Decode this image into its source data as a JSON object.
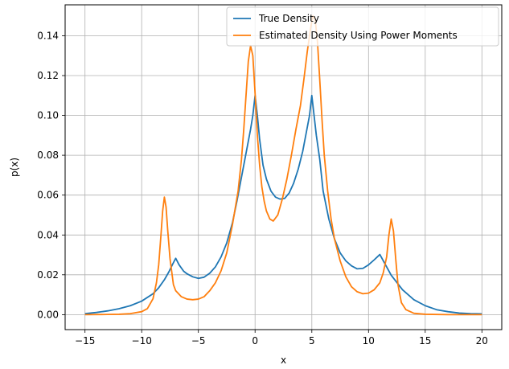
{
  "chart_data": {
    "type": "line",
    "title": "",
    "xlabel": "x",
    "ylabel": "p(x)",
    "xlim": [
      -16.75,
      21.75
    ],
    "ylim": [
      -0.0075,
      0.1555
    ],
    "grid": true,
    "legend_position": "top-right",
    "xticks": [
      -15,
      -10,
      -5,
      0,
      5,
      10,
      15,
      20
    ],
    "xtick_labels": [
      "−15",
      "−10",
      "−5",
      "0",
      "5",
      "10",
      "15",
      "20"
    ],
    "yticks": [
      0.0,
      0.02,
      0.04,
      0.06,
      0.08,
      0.1,
      0.12,
      0.14
    ],
    "ytick_labels": [
      "0.00",
      "0.02",
      "0.04",
      "0.06",
      "0.08",
      "0.10",
      "0.12",
      "0.14"
    ],
    "series": [
      {
        "name": "True Density",
        "color": "#1f77b4",
        "x": [
          -15,
          -14,
          -13,
          -12,
          -11,
          -10,
          -9,
          -8.5,
          -8,
          -7.6,
          -7.3,
          -7.1,
          -7.0,
          -6.7,
          -6.3,
          -6,
          -5.5,
          -5,
          -4.5,
          -4,
          -3.5,
          -3,
          -2.5,
          -2,
          -1.6,
          -1.2,
          -0.9,
          -0.6,
          -0.4,
          -0.2,
          0,
          0.2,
          0.4,
          0.7,
          1.0,
          1.4,
          1.8,
          2.2,
          2.6,
          3.0,
          3.4,
          3.8,
          4.2,
          4.5,
          4.8,
          5.0,
          5.2,
          5.4,
          5.7,
          6.0,
          6.5,
          7,
          7.5,
          8,
          8.5,
          9,
          9.5,
          10,
          10.5,
          11,
          11.5,
          12,
          13,
          14,
          15,
          16,
          17,
          18,
          19,
          20
        ],
        "y": [
          0.0005,
          0.0011,
          0.0019,
          0.003,
          0.0045,
          0.0068,
          0.0105,
          0.0135,
          0.0175,
          0.0215,
          0.025,
          0.0272,
          0.0283,
          0.025,
          0.0218,
          0.0205,
          0.019,
          0.0182,
          0.0188,
          0.0208,
          0.024,
          0.029,
          0.036,
          0.046,
          0.057,
          0.069,
          0.078,
          0.087,
          0.093,
          0.1,
          0.11,
          0.1,
          0.088,
          0.075,
          0.068,
          0.062,
          0.059,
          0.058,
          0.0583,
          0.061,
          0.066,
          0.073,
          0.082,
          0.091,
          0.1,
          0.11,
          0.1,
          0.09,
          0.078,
          0.062,
          0.048,
          0.038,
          0.031,
          0.027,
          0.0245,
          0.023,
          0.0232,
          0.025,
          0.0275,
          0.0302,
          0.025,
          0.0198,
          0.0125,
          0.0075,
          0.0045,
          0.0025,
          0.0015,
          0.0008,
          0.0005,
          0.0004
        ]
      },
      {
        "name": "Estimated Density Using Power Moments",
        "color": "#ff7f0e",
        "x": [
          -15,
          -13,
          -12,
          -11,
          -10,
          -9.5,
          -9,
          -8.7,
          -8.5,
          -8.3,
          -8.15,
          -8.0,
          -7.85,
          -7.7,
          -7.5,
          -7.2,
          -7,
          -6.5,
          -6,
          -5.5,
          -5,
          -4.5,
          -4,
          -3.5,
          -3,
          -2.5,
          -2,
          -1.5,
          -1.2,
          -1.0,
          -0.8,
          -0.6,
          -0.4,
          -0.2,
          0,
          0.2,
          0.4,
          0.6,
          0.8,
          1.0,
          1.3,
          1.6,
          2.0,
          2.4,
          2.8,
          3.2,
          3.6,
          4.0,
          4.3,
          4.6,
          4.9,
          5.1,
          5.3,
          5.5,
          5.7,
          5.9,
          6.1,
          6.4,
          6.7,
          7.0,
          7.5,
          8,
          8.5,
          9,
          9.5,
          10,
          10.5,
          11,
          11.3,
          11.6,
          11.8,
          12.0,
          12.2,
          12.4,
          12.6,
          12.9,
          13.3,
          14,
          15,
          17,
          20
        ],
        "y": [
          0.0,
          0.0001,
          0.0002,
          0.0005,
          0.0015,
          0.003,
          0.008,
          0.016,
          0.025,
          0.04,
          0.052,
          0.059,
          0.054,
          0.042,
          0.028,
          0.015,
          0.012,
          0.009,
          0.0078,
          0.0075,
          0.0078,
          0.009,
          0.012,
          0.016,
          0.022,
          0.031,
          0.045,
          0.062,
          0.078,
          0.093,
          0.11,
          0.127,
          0.135,
          0.13,
          0.111,
          0.09,
          0.075,
          0.064,
          0.057,
          0.052,
          0.048,
          0.047,
          0.05,
          0.058,
          0.068,
          0.08,
          0.093,
          0.105,
          0.118,
          0.132,
          0.144,
          0.15,
          0.148,
          0.137,
          0.118,
          0.098,
          0.08,
          0.062,
          0.048,
          0.038,
          0.027,
          0.019,
          0.014,
          0.0115,
          0.0105,
          0.0108,
          0.0125,
          0.016,
          0.021,
          0.029,
          0.04,
          0.048,
          0.042,
          0.028,
          0.015,
          0.006,
          0.0025,
          0.0007,
          0.0002,
          0.0,
          0.0
        ]
      }
    ]
  }
}
